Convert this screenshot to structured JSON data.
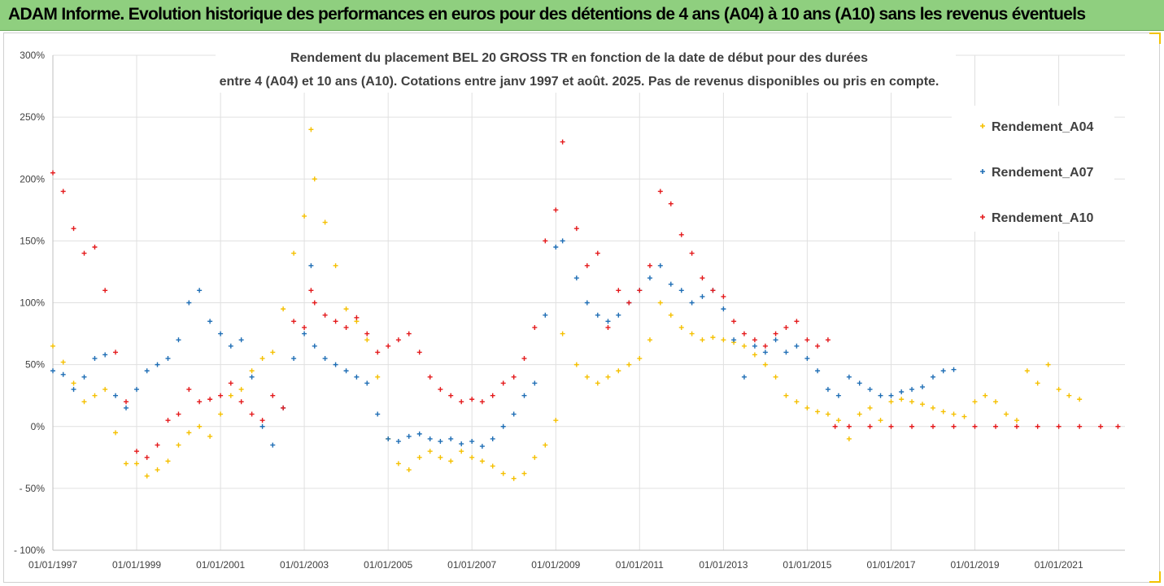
{
  "banner": {
    "text": "ADAM Informe. Evolution historique des performances en euros pour des détentions de 4 ans (A04) à 10 ans (A10) sans les revenus éventuels"
  },
  "colors": {
    "banner_bg": "#8fcf7f",
    "A04": "#f5c000",
    "A07": "#1f6eb5",
    "A10": "#e41a1c",
    "grid": "#e0e0e0",
    "text": "#404040"
  },
  "chart_data": {
    "type": "scatter",
    "title_lines": [
      "Rendement du placement BEL 20 GROSS TR en fonction de la date de début pour des durées",
      "entre 4 (A04) et 10 ans (A10). Cotations entre janv 1997 et août. 2025. Pas de revenus disponibles ou pris en compte."
    ],
    "xlabel": "",
    "ylabel": "",
    "x_range": [
      "1997-01-01",
      "2022-08-01"
    ],
    "x_ticks": [
      "01/01/1997",
      "01/01/1999",
      "01/01/2001",
      "01/01/2003",
      "01/01/2005",
      "01/01/2007",
      "01/01/2009",
      "01/01/2011",
      "01/01/2013",
      "01/01/2015",
      "01/01/2017",
      "01/01/2019",
      "01/01/2021"
    ],
    "y_range": [
      -100,
      300
    ],
    "y_ticks": [
      "300%",
      "250%",
      "200%",
      "150%",
      "100%",
      "50%",
      "0%",
      "- 50%",
      "- 100%"
    ],
    "grid": true,
    "legend_position": "top-right",
    "series": [
      {
        "name": "Rendement_A04",
        "color": "#f5c000",
        "points": [
          [
            "1997-01",
            65
          ],
          [
            "1997-04",
            52
          ],
          [
            "1997-07",
            35
          ],
          [
            "1997-10",
            20
          ],
          [
            "1998-01",
            25
          ],
          [
            "1998-04",
            30
          ],
          [
            "1998-07",
            -5
          ],
          [
            "1998-10",
            -30
          ],
          [
            "1999-01",
            -30
          ],
          [
            "1999-04",
            -40
          ],
          [
            "1999-07",
            -35
          ],
          [
            "1999-10",
            -28
          ],
          [
            "2000-01",
            -15
          ],
          [
            "2000-04",
            -5
          ],
          [
            "2000-07",
            0
          ],
          [
            "2000-10",
            -8
          ],
          [
            "2001-01",
            10
          ],
          [
            "2001-04",
            25
          ],
          [
            "2001-07",
            30
          ],
          [
            "2001-10",
            45
          ],
          [
            "2002-01",
            55
          ],
          [
            "2002-04",
            60
          ],
          [
            "2002-07",
            95
          ],
          [
            "2002-10",
            140
          ],
          [
            "2003-01",
            170
          ],
          [
            "2003-03",
            240
          ],
          [
            "2003-04",
            200
          ],
          [
            "2003-07",
            165
          ],
          [
            "2003-10",
            130
          ],
          [
            "2004-01",
            95
          ],
          [
            "2004-04",
            85
          ],
          [
            "2004-07",
            70
          ],
          [
            "2004-10",
            40
          ],
          [
            "2005-01",
            -10
          ],
          [
            "2005-04",
            -30
          ],
          [
            "2005-07",
            -35
          ],
          [
            "2005-10",
            -25
          ],
          [
            "2006-01",
            -20
          ],
          [
            "2006-04",
            -25
          ],
          [
            "2006-07",
            -28
          ],
          [
            "2006-10",
            -20
          ],
          [
            "2007-01",
            -25
          ],
          [
            "2007-04",
            -28
          ],
          [
            "2007-07",
            -32
          ],
          [
            "2007-10",
            -38
          ],
          [
            "2008-01",
            -42
          ],
          [
            "2008-04",
            -38
          ],
          [
            "2008-07",
            -25
          ],
          [
            "2008-10",
            -15
          ],
          [
            "2009-01",
            5
          ],
          [
            "2009-03",
            75
          ],
          [
            "2009-07",
            50
          ],
          [
            "2009-10",
            40
          ],
          [
            "2010-01",
            35
          ],
          [
            "2010-04",
            40
          ],
          [
            "2010-07",
            45
          ],
          [
            "2010-10",
            50
          ],
          [
            "2011-01",
            55
          ],
          [
            "2011-04",
            70
          ],
          [
            "2011-07",
            100
          ],
          [
            "2011-10",
            90
          ],
          [
            "2012-01",
            80
          ],
          [
            "2012-04",
            75
          ],
          [
            "2012-07",
            70
          ],
          [
            "2012-10",
            72
          ],
          [
            "2013-01",
            70
          ],
          [
            "2013-04",
            68
          ],
          [
            "2013-07",
            65
          ],
          [
            "2013-10",
            58
          ],
          [
            "2014-01",
            50
          ],
          [
            "2014-04",
            40
          ],
          [
            "2014-07",
            25
          ],
          [
            "2014-10",
            20
          ],
          [
            "2015-01",
            15
          ],
          [
            "2015-04",
            12
          ],
          [
            "2015-07",
            10
          ],
          [
            "2015-10",
            5
          ],
          [
            "2016-01",
            -10
          ],
          [
            "2016-04",
            10
          ],
          [
            "2016-07",
            15
          ],
          [
            "2016-10",
            5
          ],
          [
            "2017-01",
            20
          ],
          [
            "2017-04",
            22
          ],
          [
            "2017-07",
            20
          ],
          [
            "2017-10",
            18
          ],
          [
            "2018-01",
            15
          ],
          [
            "2018-04",
            12
          ],
          [
            "2018-07",
            10
          ],
          [
            "2018-10",
            8
          ],
          [
            "2019-01",
            20
          ],
          [
            "2019-04",
            25
          ],
          [
            "2019-07",
            20
          ],
          [
            "2019-10",
            10
          ],
          [
            "2020-01",
            5
          ],
          [
            "2020-04",
            45
          ],
          [
            "2020-07",
            35
          ],
          [
            "2020-10",
            50
          ],
          [
            "2021-01",
            30
          ],
          [
            "2021-04",
            25
          ],
          [
            "2021-07",
            22
          ]
        ]
      },
      {
        "name": "Rendement_A07",
        "color": "#1f6eb5",
        "points": [
          [
            "1997-01",
            45
          ],
          [
            "1997-04",
            42
          ],
          [
            "1997-07",
            30
          ],
          [
            "1997-10",
            40
          ],
          [
            "1998-01",
            55
          ],
          [
            "1998-04",
            58
          ],
          [
            "1998-07",
            25
          ],
          [
            "1998-10",
            15
          ],
          [
            "1999-01",
            30
          ],
          [
            "1999-04",
            45
          ],
          [
            "1999-07",
            50
          ],
          [
            "1999-10",
            55
          ],
          [
            "2000-01",
            70
          ],
          [
            "2000-04",
            100
          ],
          [
            "2000-07",
            110
          ],
          [
            "2000-10",
            85
          ],
          [
            "2001-01",
            75
          ],
          [
            "2001-04",
            65
          ],
          [
            "2001-07",
            70
          ],
          [
            "2001-10",
            40
          ],
          [
            "2002-01",
            0
          ],
          [
            "2002-04",
            -15
          ],
          [
            "2002-07",
            15
          ],
          [
            "2002-10",
            55
          ],
          [
            "2003-01",
            75
          ],
          [
            "2003-03",
            130
          ],
          [
            "2003-04",
            65
          ],
          [
            "2003-07",
            55
          ],
          [
            "2003-10",
            50
          ],
          [
            "2004-01",
            45
          ],
          [
            "2004-04",
            40
          ],
          [
            "2004-07",
            35
          ],
          [
            "2004-10",
            10
          ],
          [
            "2005-01",
            -10
          ],
          [
            "2005-04",
            -12
          ],
          [
            "2005-07",
            -8
          ],
          [
            "2005-10",
            -6
          ],
          [
            "2006-01",
            -10
          ],
          [
            "2006-04",
            -12
          ],
          [
            "2006-07",
            -10
          ],
          [
            "2006-10",
            -14
          ],
          [
            "2007-01",
            -12
          ],
          [
            "2007-04",
            -16
          ],
          [
            "2007-07",
            -10
          ],
          [
            "2007-10",
            0
          ],
          [
            "2008-01",
            10
          ],
          [
            "2008-04",
            25
          ],
          [
            "2008-07",
            35
          ],
          [
            "2008-10",
            90
          ],
          [
            "2009-01",
            145
          ],
          [
            "2009-03",
            150
          ],
          [
            "2009-07",
            120
          ],
          [
            "2009-10",
            100
          ],
          [
            "2010-01",
            90
          ],
          [
            "2010-04",
            85
          ],
          [
            "2010-07",
            90
          ],
          [
            "2010-10",
            100
          ],
          [
            "2011-01",
            110
          ],
          [
            "2011-04",
            120
          ],
          [
            "2011-07",
            130
          ],
          [
            "2011-10",
            115
          ],
          [
            "2012-01",
            110
          ],
          [
            "2012-04",
            100
          ],
          [
            "2012-07",
            105
          ],
          [
            "2012-10",
            110
          ],
          [
            "2013-01",
            95
          ],
          [
            "2013-04",
            70
          ],
          [
            "2013-07",
            40
          ],
          [
            "2013-10",
            65
          ],
          [
            "2014-01",
            60
          ],
          [
            "2014-04",
            70
          ],
          [
            "2014-07",
            60
          ],
          [
            "2014-10",
            65
          ],
          [
            "2015-01",
            55
          ],
          [
            "2015-04",
            45
          ],
          [
            "2015-07",
            30
          ],
          [
            "2015-10",
            25
          ],
          [
            "2016-01",
            40
          ],
          [
            "2016-04",
            35
          ],
          [
            "2016-07",
            30
          ],
          [
            "2016-10",
            25
          ],
          [
            "2017-01",
            25
          ],
          [
            "2017-04",
            28
          ],
          [
            "2017-07",
            30
          ],
          [
            "2017-10",
            32
          ],
          [
            "2018-01",
            40
          ],
          [
            "2018-04",
            45
          ],
          [
            "2018-07",
            46
          ]
        ]
      },
      {
        "name": "Rendement_A10",
        "color": "#e41a1c",
        "points": [
          [
            "1997-01",
            205
          ],
          [
            "1997-04",
            190
          ],
          [
            "1997-07",
            160
          ],
          [
            "1997-10",
            140
          ],
          [
            "1998-01",
            145
          ],
          [
            "1998-04",
            110
          ],
          [
            "1998-07",
            60
          ],
          [
            "1998-10",
            20
          ],
          [
            "1999-01",
            -20
          ],
          [
            "1999-04",
            -25
          ],
          [
            "1999-07",
            -15
          ],
          [
            "1999-10",
            5
          ],
          [
            "2000-01",
            10
          ],
          [
            "2000-04",
            30
          ],
          [
            "2000-07",
            20
          ],
          [
            "2000-10",
            22
          ],
          [
            "2001-01",
            25
          ],
          [
            "2001-04",
            35
          ],
          [
            "2001-07",
            20
          ],
          [
            "2001-10",
            10
          ],
          [
            "2002-01",
            5
          ],
          [
            "2002-04",
            25
          ],
          [
            "2002-07",
            15
          ],
          [
            "2002-10",
            85
          ],
          [
            "2003-01",
            80
          ],
          [
            "2003-03",
            110
          ],
          [
            "2003-04",
            100
          ],
          [
            "2003-07",
            90
          ],
          [
            "2003-10",
            85
          ],
          [
            "2004-01",
            80
          ],
          [
            "2004-04",
            88
          ],
          [
            "2004-07",
            75
          ],
          [
            "2004-10",
            60
          ],
          [
            "2005-01",
            65
          ],
          [
            "2005-04",
            70
          ],
          [
            "2005-07",
            75
          ],
          [
            "2005-10",
            60
          ],
          [
            "2006-01",
            40
          ],
          [
            "2006-04",
            30
          ],
          [
            "2006-07",
            25
          ],
          [
            "2006-10",
            20
          ],
          [
            "2007-01",
            22
          ],
          [
            "2007-04",
            20
          ],
          [
            "2007-07",
            25
          ],
          [
            "2007-10",
            35
          ],
          [
            "2008-01",
            40
          ],
          [
            "2008-04",
            55
          ],
          [
            "2008-07",
            80
          ],
          [
            "2008-10",
            150
          ],
          [
            "2009-01",
            175
          ],
          [
            "2009-03",
            230
          ],
          [
            "2009-07",
            160
          ],
          [
            "2009-10",
            130
          ],
          [
            "2010-01",
            140
          ],
          [
            "2010-04",
            80
          ],
          [
            "2010-07",
            110
          ],
          [
            "2010-10",
            100
          ],
          [
            "2011-01",
            110
          ],
          [
            "2011-04",
            130
          ],
          [
            "2011-07",
            190
          ],
          [
            "2011-10",
            180
          ],
          [
            "2012-01",
            155
          ],
          [
            "2012-04",
            140
          ],
          [
            "2012-07",
            120
          ],
          [
            "2012-10",
            110
          ],
          [
            "2013-01",
            105
          ],
          [
            "2013-04",
            85
          ],
          [
            "2013-07",
            75
          ],
          [
            "2013-10",
            70
          ],
          [
            "2014-01",
            65
          ],
          [
            "2014-04",
            75
          ],
          [
            "2014-07",
            80
          ],
          [
            "2014-10",
            85
          ],
          [
            "2015-01",
            70
          ],
          [
            "2015-04",
            65
          ],
          [
            "2015-07",
            70
          ],
          [
            "2015-09",
            0
          ],
          [
            "2016-01",
            0
          ],
          [
            "2016-07",
            0
          ],
          [
            "2017-01",
            0
          ],
          [
            "2017-07",
            0
          ],
          [
            "2018-01",
            0
          ],
          [
            "2018-07",
            0
          ],
          [
            "2019-01",
            0
          ],
          [
            "2019-07",
            0
          ],
          [
            "2020-01",
            0
          ],
          [
            "2020-07",
            0
          ],
          [
            "2021-01",
            0
          ],
          [
            "2021-07",
            0
          ],
          [
            "2022-01",
            0
          ],
          [
            "2022-06",
            0
          ]
        ]
      }
    ]
  }
}
